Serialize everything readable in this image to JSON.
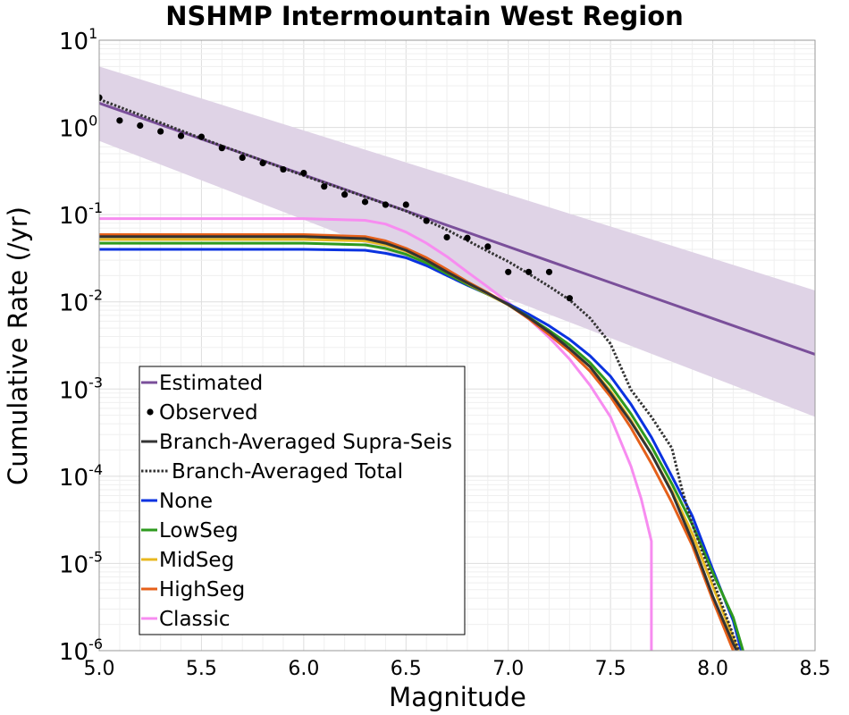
{
  "chart_data": {
    "type": "line",
    "title": "NSHMP Intermountain West Region",
    "xlabel": "Magnitude",
    "ylabel": "Cumulative Rate (/yr)",
    "xlim": [
      5.0,
      8.5
    ],
    "ylim": [
      1e-06,
      10
    ],
    "yscale": "log",
    "grid": true,
    "x_ticks": [
      "5.0",
      "5.5",
      "6.0",
      "6.5",
      "7.0",
      "7.5",
      "8.0",
      "8.5"
    ],
    "y_ticks": [
      {
        "value": 10,
        "base": "10",
        "exp": "1"
      },
      {
        "value": 1,
        "base": "10",
        "exp": "0"
      },
      {
        "value": 0.1,
        "base": "10",
        "exp": "-1"
      },
      {
        "value": 0.01,
        "base": "10",
        "exp": "-2"
      },
      {
        "value": 0.001,
        "base": "10",
        "exp": "-3"
      },
      {
        "value": 0.0001,
        "base": "10",
        "exp": "-4"
      },
      {
        "value": 1e-05,
        "base": "10",
        "exp": "-5"
      },
      {
        "value": 1e-06,
        "base": "10",
        "exp": "-6"
      }
    ],
    "legend_position": "lower-left",
    "band": {
      "color": "#dfd3e6",
      "x": [
        5.0,
        8.5
      ],
      "lower": [
        0.7,
        0.00048
      ],
      "upper": [
        5.0,
        0.0135
      ]
    },
    "series": [
      {
        "name": "Estimated",
        "style": "line",
        "color": "#7a4f9a",
        "x": [
          5.0,
          8.5
        ],
        "y": [
          1.9,
          0.0025
        ]
      },
      {
        "name": "Observed",
        "style": "points",
        "color": "#000000",
        "x": [
          5.0,
          5.1,
          5.2,
          5.3,
          5.4,
          5.5,
          5.6,
          5.7,
          5.8,
          5.9,
          6.0,
          6.1,
          6.2,
          6.3,
          6.4,
          6.5,
          6.6,
          6.7,
          6.8,
          6.9,
          7.0,
          7.1,
          7.2,
          7.3
        ],
        "y": [
          2.2,
          1.2,
          1.05,
          0.9,
          0.8,
          0.78,
          0.58,
          0.45,
          0.39,
          0.33,
          0.3,
          0.21,
          0.17,
          0.14,
          0.13,
          0.13,
          0.085,
          0.055,
          0.054,
          0.043,
          0.022,
          0.022,
          0.022,
          0.011
        ]
      },
      {
        "name": "Branch-Averaged Supra-Seis",
        "style": "line",
        "color": "#333333",
        "x": [
          5.0,
          6.0,
          6.3,
          6.4,
          6.5,
          6.6,
          6.7,
          6.8,
          6.9,
          7.0,
          7.1,
          7.2,
          7.3,
          7.4,
          7.5,
          7.6,
          7.7,
          7.8,
          7.9,
          8.0,
          8.1,
          8.15
        ],
        "y": [
          0.056,
          0.056,
          0.053,
          0.047,
          0.039,
          0.03,
          0.022,
          0.0165,
          0.0125,
          0.0093,
          0.0066,
          0.0045,
          0.0029,
          0.0018,
          0.0009,
          0.00042,
          0.00018,
          6.5e-05,
          1.8e-05,
          4.2e-06,
          1.2e-06,
          7e-07
        ]
      },
      {
        "name": "Branch-Averaged Total",
        "style": "dotted",
        "color": "#333333",
        "x": [
          5.0,
          5.5,
          6.0,
          6.3,
          6.5,
          6.7,
          6.9,
          7.0,
          7.1,
          7.2,
          7.3,
          7.4,
          7.5,
          7.6,
          7.7,
          7.8,
          7.85,
          7.9,
          8.0,
          8.1,
          8.15
        ],
        "y": [
          2.1,
          0.75,
          0.28,
          0.16,
          0.11,
          0.067,
          0.038,
          0.029,
          0.021,
          0.015,
          0.0105,
          0.0065,
          0.0033,
          0.00098,
          0.00048,
          0.00021,
          7e-05,
          2.8e-05,
          6.5e-06,
          1.5e-06,
          7e-07
        ]
      },
      {
        "name": "None",
        "style": "line",
        "color": "#0a32e0",
        "x": [
          5.0,
          6.0,
          6.3,
          6.4,
          6.5,
          6.6,
          6.7,
          6.8,
          6.9,
          7.0,
          7.1,
          7.2,
          7.3,
          7.4,
          7.5,
          7.6,
          7.7,
          7.8,
          7.9,
          8.0,
          8.1,
          8.15
        ],
        "y": [
          0.04,
          0.04,
          0.039,
          0.036,
          0.032,
          0.026,
          0.02,
          0.0155,
          0.0122,
          0.0095,
          0.0072,
          0.0053,
          0.0037,
          0.0024,
          0.0014,
          0.00067,
          0.00028,
          0.0001,
          3.5e-05,
          8.5e-06,
          2.2e-06,
          8e-07
        ]
      },
      {
        "name": "LowSeg",
        "style": "line",
        "color": "#2e9a1e",
        "x": [
          5.0,
          6.0,
          6.3,
          6.4,
          6.5,
          6.6,
          6.7,
          6.8,
          6.9,
          7.0,
          7.1,
          7.2,
          7.3,
          7.4,
          7.5,
          7.6,
          7.7,
          7.8,
          7.9,
          8.0,
          8.1,
          8.16
        ],
        "y": [
          0.047,
          0.047,
          0.045,
          0.041,
          0.035,
          0.028,
          0.021,
          0.0158,
          0.0122,
          0.0093,
          0.0067,
          0.0047,
          0.0032,
          0.002,
          0.0011,
          0.00052,
          0.00022,
          8.2e-05,
          2.8e-05,
          7.8e-06,
          2.4e-06,
          8e-07
        ]
      },
      {
        "name": "MidSeg",
        "style": "line",
        "color": "#e8b820",
        "x": [
          5.0,
          6.0,
          6.3,
          6.4,
          6.5,
          6.6,
          6.7,
          6.8,
          6.9,
          7.0,
          7.1,
          7.2,
          7.3,
          7.4,
          7.5,
          7.6,
          7.7,
          7.8,
          7.9,
          8.0,
          8.1,
          8.14
        ],
        "y": [
          0.052,
          0.052,
          0.05,
          0.045,
          0.038,
          0.03,
          0.022,
          0.0163,
          0.0123,
          0.0092,
          0.0065,
          0.0044,
          0.0029,
          0.0018,
          0.00095,
          0.00044,
          0.00018,
          6.8e-05,
          2.2e-05,
          5.5e-06,
          1.4e-06,
          8e-07
        ]
      },
      {
        "name": "HighSeg",
        "style": "line",
        "color": "#e5601a",
        "x": [
          5.0,
          6.0,
          6.3,
          6.4,
          6.5,
          6.6,
          6.7,
          6.8,
          6.9,
          7.0,
          7.1,
          7.2,
          7.3,
          7.4,
          7.5,
          7.6,
          7.7,
          7.8,
          7.9,
          8.0,
          8.1,
          8.12
        ],
        "y": [
          0.059,
          0.059,
          0.056,
          0.05,
          0.041,
          0.032,
          0.0235,
          0.017,
          0.0127,
          0.0093,
          0.0064,
          0.0042,
          0.0027,
          0.0016,
          0.00082,
          0.00036,
          0.00014,
          5e-05,
          1.6e-05,
          3.8e-06,
          1e-06,
          7e-07
        ]
      },
      {
        "name": "Classic",
        "style": "line",
        "color": "#f78cf0",
        "x": [
          5.0,
          6.0,
          6.3,
          6.4,
          6.5,
          6.6,
          6.7,
          6.8,
          6.9,
          7.0,
          7.1,
          7.2,
          7.3,
          7.4,
          7.5,
          7.6,
          7.65,
          7.7,
          7.7
        ],
        "y": [
          0.09,
          0.09,
          0.086,
          0.078,
          0.063,
          0.047,
          0.033,
          0.022,
          0.0148,
          0.0098,
          0.0064,
          0.0039,
          0.0022,
          0.0011,
          0.00048,
          0.00013,
          5.5e-05,
          1.8e-05,
          7e-07
        ]
      }
    ]
  }
}
